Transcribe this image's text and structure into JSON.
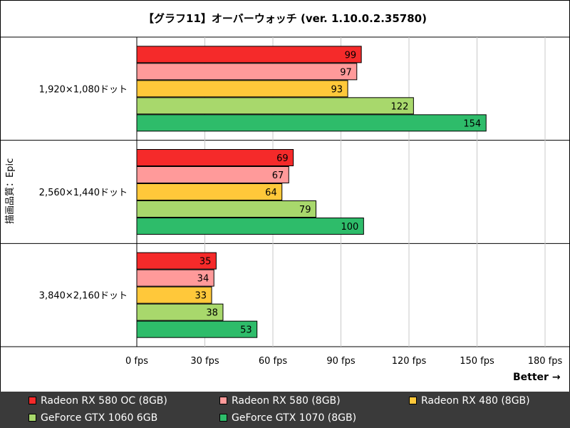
{
  "chart_data": {
    "type": "bar",
    "orientation": "horizontal",
    "title": "【グラフ11】オーバーウォッチ (ver. 1.10.0.2.35780)",
    "ylabel": "描画品質：Epic",
    "better_label": "Better →",
    "categories": [
      "1,920×1,080ドット",
      "2,560×1,440ドット",
      "3,840×2,160ドット"
    ],
    "series": [
      {
        "name": "Radeon RX 580 OC (8GB)",
        "color": "#f52a2a",
        "values": [
          99,
          69,
          35
        ]
      },
      {
        "name": "Radeon RX 580 (8GB)",
        "color": "#ff9a9a",
        "values": [
          97,
          67,
          34
        ]
      },
      {
        "name": "Radeon RX 480 (8GB)",
        "color": "#ffc83a",
        "values": [
          93,
          64,
          33
        ]
      },
      {
        "name": "GeForce GTX 1060 6GB",
        "color": "#a8d86c",
        "values": [
          122,
          79,
          38
        ]
      },
      {
        "name": "GeForce GTX 1070 (8GB)",
        "color": "#2ebc6a",
        "values": [
          154,
          100,
          53
        ]
      }
    ],
    "xlim": [
      0,
      180
    ],
    "ticks": [
      0,
      30,
      60,
      90,
      120,
      150,
      180
    ],
    "tick_labels": [
      "0 fps",
      "30 fps",
      "60 fps",
      "90 fps",
      "120 fps",
      "150 fps",
      "180 fps"
    ],
    "grid": true,
    "legend_position": "bottom"
  }
}
